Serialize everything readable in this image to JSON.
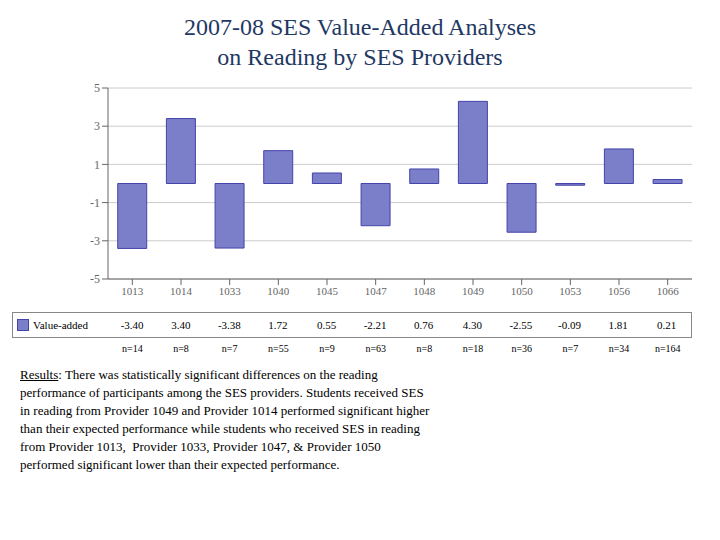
{
  "chart_data": {
    "type": "bar",
    "title": "2007-08 SES Value-Added Analyses\non Reading by SES Providers",
    "categories": [
      "1013",
      "1014",
      "1033",
      "1040",
      "1045",
      "1047",
      "1048",
      "1049",
      "1050",
      "1053",
      "1056",
      "1066"
    ],
    "series": [
      {
        "name": "Value-added",
        "color": "#7B7EC8",
        "values": [
          -3.4,
          3.4,
          -3.38,
          1.72,
          0.55,
          -2.21,
          0.76,
          4.3,
          -2.55,
          -0.09,
          1.81,
          0.21
        ],
        "value_labels": [
          "-3.40",
          "3.40",
          "-3.38",
          "1.72",
          "0.55",
          "-2.21",
          "0.76",
          "4.30",
          "-2.55",
          "-0.09",
          "1.81",
          "0.21"
        ],
        "n_labels": [
          "n=14",
          "n=8",
          "n=7",
          "n=55",
          "n=9",
          "n=63",
          "n=8",
          "n=18",
          "n=36",
          "n=7",
          "n=34",
          "n=164"
        ]
      }
    ],
    "ylim": [
      -5,
      5
    ],
    "yticks": [
      -5,
      -3,
      -1,
      1,
      3,
      5
    ],
    "grid": true,
    "annotations": [
      "Results: There was statistically significant differences on the reading",
      "performance of participants among the SES providers. Students received SES",
      "in reading from Provider 1049 and Provider 1014 performed significant higher",
      "than their expected performance while students who received SES in reading",
      "from Provider 1013,  Provider 1033, Provider 1047, & Provider 1050",
      "performed significant lower than their expected performance."
    ]
  }
}
